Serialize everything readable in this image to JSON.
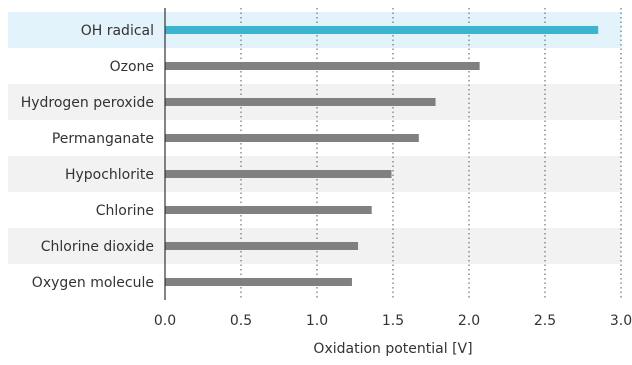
{
  "chart_data": {
    "type": "bar",
    "orientation": "horizontal",
    "title": "",
    "xlabel": "Oxidation potential [V]",
    "ylabel": "",
    "xlim": [
      0,
      3.0
    ],
    "xticks": [
      "0.0",
      "0.5",
      "1.0",
      "1.5",
      "2.0",
      "2.5",
      "3.0"
    ],
    "grid": "vertical-dotted",
    "categories": [
      "OH radical",
      "Ozone",
      "Hydrogen peroxide",
      "Permanganate",
      "Hypochlorite",
      "Chlorine",
      "Chlorine dioxide",
      "Oxygen molecule"
    ],
    "values": [
      2.85,
      2.07,
      1.78,
      1.67,
      1.49,
      1.36,
      1.27,
      1.23
    ],
    "highlight_index": 0,
    "colors": {
      "bar": "#808080",
      "highlight_bar": "#3bb4cf",
      "highlight_band": "#e3f3fb",
      "alt_band": "#f2f2f2",
      "grid": "#555555",
      "axis": "#333333"
    }
  }
}
